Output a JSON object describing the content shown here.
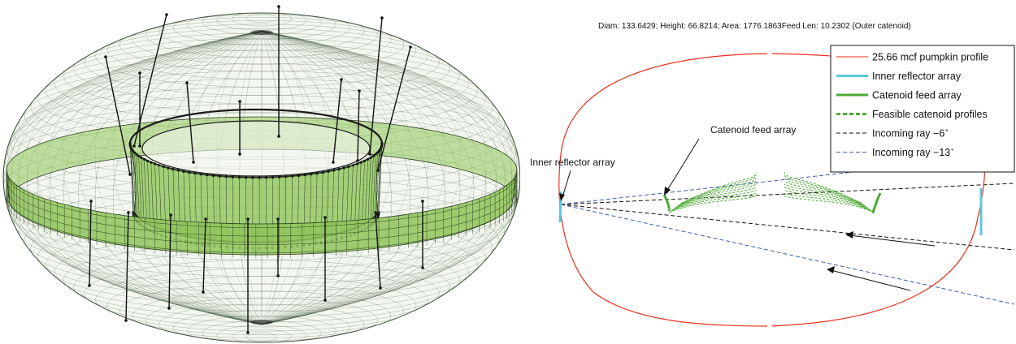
{
  "header": {
    "stats_line": "Diam: 133.6429;  Height: 66.8214; Area: 1776.1863Feed Len: 10.2302 (Outer catenoid)"
  },
  "annotations": {
    "inner_reflector": "Inner reflector array",
    "catenoid_feed": "Catenoid feed array"
  },
  "legend": {
    "items": [
      {
        "label": "25.66 mcf pumpkin profile",
        "color": "#e8301e",
        "style": "solid-thin"
      },
      {
        "label": "Inner reflector array",
        "color": "#5bc8dc",
        "style": "solid-thick"
      },
      {
        "label": "Catenoid feed array",
        "color": "#4daa34",
        "style": "solid-thick"
      },
      {
        "label": "Feasible catenoid profiles",
        "color": "#4daa34",
        "style": "dashed-thick"
      },
      {
        "label": "Incoming ray −6",
        "sup": "∘",
        "color": "#111111",
        "style": "dashed-thin"
      },
      {
        "label": "Incoming ray −13",
        "sup": "∘",
        "color": "#3a5fb0",
        "style": "dashed-thin"
      }
    ]
  },
  "colors": {
    "mesh": "#2f4a2f",
    "band_fill": "#8fc65a",
    "profile": "#e8301e",
    "reflector": "#5bc8dc",
    "feed": "#4daa34",
    "ray_black": "#111111",
    "ray_blue": "#3a5fb0"
  }
}
